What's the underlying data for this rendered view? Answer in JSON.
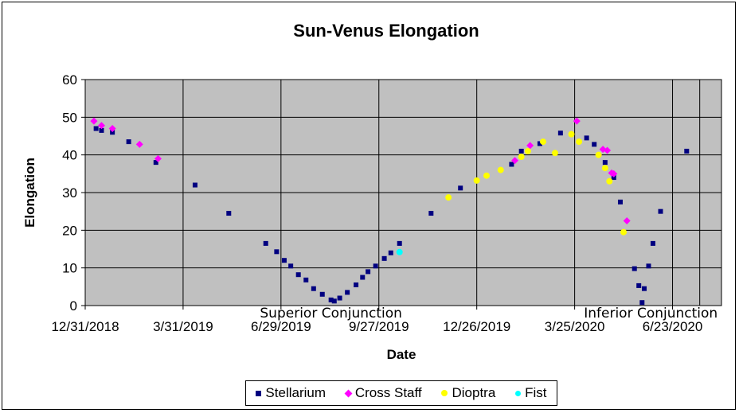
{
  "chart_data": {
    "type": "scatter",
    "title": "Sun-Venus Elongation",
    "xlabel": "Date",
    "ylabel": "Elongation",
    "ylim": [
      0,
      60
    ],
    "yticks": [
      0,
      10,
      20,
      30,
      40,
      50,
      60
    ],
    "xlim": [
      "2018-12-31",
      "2020-08-07"
    ],
    "xticks": [
      "12/31/2018",
      "3/31/2019",
      "6/29/2019",
      "9/27/2019",
      "12/26/2019",
      "3/25/2020",
      "6/23/2020"
    ],
    "grid": true,
    "legend_position": "bottom",
    "annotations": [
      {
        "text": "Superior Conjunction",
        "x": "2019-08-14",
        "y": 0
      },
      {
        "text": "Inferior Conjunction",
        "x": "2020-06-03",
        "y": 0
      }
    ],
    "series": [
      {
        "name": "Stellarium",
        "marker": "square",
        "color": "#000080",
        "points": [
          [
            "2019-01-10",
            47
          ],
          [
            "2019-01-15",
            46.5
          ],
          [
            "2019-01-25",
            46
          ],
          [
            "2019-02-09",
            43.5
          ],
          [
            "2019-03-06",
            38
          ],
          [
            "2019-04-11",
            32
          ],
          [
            "2019-05-12",
            24.5
          ],
          [
            "2019-06-15",
            16.5
          ],
          [
            "2019-06-25",
            14.3
          ],
          [
            "2019-07-02",
            12
          ],
          [
            "2019-07-08",
            10.5
          ],
          [
            "2019-07-15",
            8.2
          ],
          [
            "2019-07-22",
            6.8
          ],
          [
            "2019-07-29",
            4.5
          ],
          [
            "2019-08-06",
            3
          ],
          [
            "2019-08-14",
            1.5
          ],
          [
            "2019-08-17",
            1.2
          ],
          [
            "2019-08-22",
            2
          ],
          [
            "2019-08-29",
            3.5
          ],
          [
            "2019-09-06",
            5.5
          ],
          [
            "2019-09-12",
            7.5
          ],
          [
            "2019-09-17",
            9
          ],
          [
            "2019-09-24",
            10.5
          ],
          [
            "2019-10-02",
            12.5
          ],
          [
            "2019-10-08",
            14
          ],
          [
            "2019-10-16",
            16.5
          ],
          [
            "2019-11-14",
            24.5
          ],
          [
            "2019-12-11",
            31.2
          ],
          [
            "2020-01-27",
            37.5
          ],
          [
            "2020-02-05",
            41
          ],
          [
            "2020-02-22",
            43
          ],
          [
            "2020-03-12",
            45.8
          ],
          [
            "2020-04-05",
            44.5
          ],
          [
            "2020-04-12",
            42.8
          ],
          [
            "2020-04-22",
            38
          ],
          [
            "2020-04-30",
            34
          ],
          [
            "2020-05-06",
            27.5
          ],
          [
            "2020-05-19",
            9.8
          ],
          [
            "2020-05-23",
            5.3
          ],
          [
            "2020-05-26",
            0.8
          ],
          [
            "2020-05-28",
            4.5
          ],
          [
            "2020-06-01",
            10.5
          ],
          [
            "2020-06-05",
            16.5
          ],
          [
            "2020-06-12",
            25
          ],
          [
            "2020-07-06",
            41
          ]
        ]
      },
      {
        "name": "Cross Staff",
        "marker": "diamond",
        "color": "#ff00ff",
        "points": [
          [
            "2019-01-08",
            49
          ],
          [
            "2019-01-15",
            47.8
          ],
          [
            "2019-01-25",
            47
          ],
          [
            "2019-02-19",
            42.8
          ],
          [
            "2019-03-08",
            39
          ],
          [
            "2020-01-30",
            38.5
          ],
          [
            "2020-02-13",
            42.5
          ],
          [
            "2020-03-27",
            49
          ],
          [
            "2020-04-20",
            41.5
          ],
          [
            "2020-04-24",
            41.2
          ],
          [
            "2020-04-28",
            35.2
          ],
          [
            "2020-04-30",
            35
          ],
          [
            "2020-05-12",
            22.5
          ]
        ]
      },
      {
        "name": "Dioptra",
        "marker": "circle",
        "color": "#ffff00",
        "points": [
          [
            "2019-11-30",
            28.7
          ],
          [
            "2019-12-26",
            33.2
          ],
          [
            "2020-01-04",
            34.5
          ],
          [
            "2020-01-17",
            36
          ],
          [
            "2020-02-05",
            39.5
          ],
          [
            "2020-02-11",
            41
          ],
          [
            "2020-02-25",
            43.5
          ],
          [
            "2020-03-07",
            40.5
          ],
          [
            "2020-03-22",
            45.5
          ],
          [
            "2020-03-29",
            43.5
          ],
          [
            "2020-04-16",
            40
          ],
          [
            "2020-04-22",
            36.5
          ],
          [
            "2020-04-26",
            33
          ],
          [
            "2020-05-09",
            19.5
          ]
        ]
      },
      {
        "name": "Fist",
        "marker": "circle",
        "color": "#00ffff",
        "points": [
          [
            "2019-10-16",
            14.2
          ]
        ]
      }
    ]
  }
}
